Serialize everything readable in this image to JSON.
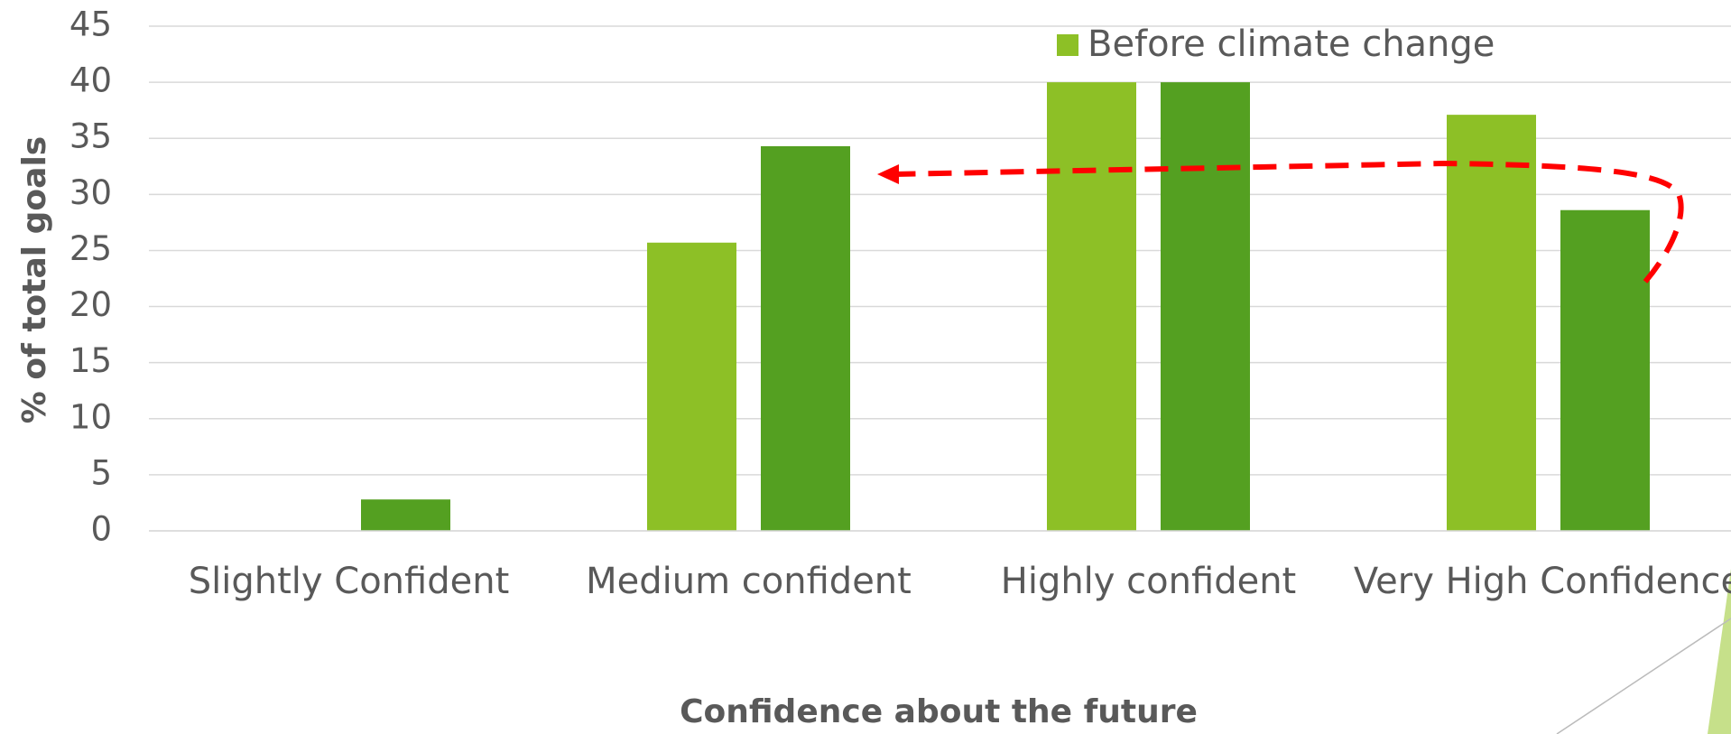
{
  "chart_data": {
    "type": "bar",
    "categories": [
      "Slightly Confident",
      "Medium confident",
      "Highly confident",
      "Very High Confidence"
    ],
    "series": [
      {
        "name": "Before climate change",
        "color": "#8dc026",
        "values": [
          0,
          25.7,
          40,
          37.1
        ]
      },
      {
        "color": "#54a021",
        "values": [
          2.8,
          34.3,
          40,
          28.6
        ]
      }
    ],
    "ylim": [
      0,
      45
    ],
    "yticks": [
      0,
      5,
      10,
      15,
      20,
      25,
      30,
      35,
      40,
      45
    ],
    "grid": true,
    "ylabel": "% of total goals",
    "xlabel": "Confidence about the future",
    "legend": "top-right"
  }
}
